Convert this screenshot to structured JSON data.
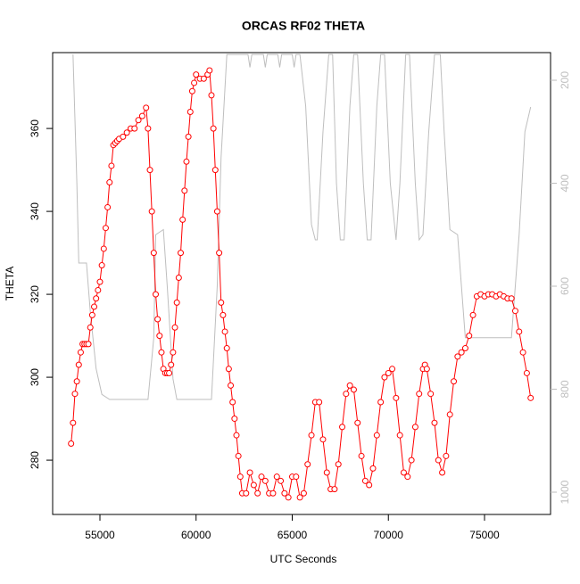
{
  "chart_data": {
    "type": "line",
    "title": "ORCAS RF02 THETA",
    "x_label": "UTC Seconds",
    "y_label": "THETA",
    "xlim": [
      52541,
      78434
    ],
    "ylim": [
      266.9,
      378.3
    ],
    "y2lim": [
      1043.3,
      146.3
    ],
    "xticks": [
      55000,
      60000,
      65000,
      70000,
      75000
    ],
    "yticks": [
      280,
      300,
      320,
      340,
      360
    ],
    "y2ticks": [
      200,
      400,
      600,
      800,
      1000
    ],
    "series": [
      {
        "color": "#ff0000",
        "marker": "circle",
        "x": [
          53500,
          53600,
          53700,
          53800,
          53900,
          54000,
          54100,
          54200,
          54300,
          54400,
          54500,
          54600,
          54700,
          54800,
          54900,
          55000,
          55100,
          55200,
          55300,
          55400,
          55500,
          55600,
          55700,
          55800,
          55900,
          56000,
          56200,
          56400,
          56600,
          56800,
          57000,
          57200,
          57400,
          57500,
          57600,
          57700,
          57800,
          57900,
          58000,
          58100,
          58200,
          58300,
          58400,
          58500,
          58600,
          58700,
          58800,
          58900,
          59000,
          59100,
          59200,
          59300,
          59400,
          59500,
          59600,
          59700,
          59800,
          59900,
          60000,
          60200,
          60400,
          60600,
          60700,
          60800,
          60900,
          61000,
          61100,
          61200,
          61300,
          61400,
          61500,
          61600,
          61700,
          61800,
          61900,
          62000,
          62100,
          62200,
          62300,
          62400,
          62600,
          62800,
          63000,
          63200,
          63400,
          63600,
          63800,
          64000,
          64200,
          64400,
          64600,
          64800,
          65000,
          65200,
          65400,
          65600,
          65800,
          66000,
          66200,
          66400,
          66600,
          66800,
          67000,
          67200,
          67400,
          67600,
          67800,
          68000,
          68200,
          68400,
          68600,
          68800,
          69000,
          69200,
          69400,
          69600,
          69800,
          70000,
          70200,
          70400,
          70600,
          70800,
          71000,
          71200,
          71400,
          71600,
          71800,
          71900,
          72000,
          72200,
          72400,
          72600,
          72800,
          73000,
          73200,
          73400,
          73600,
          73800,
          74000,
          74200,
          74400,
          74600,
          74800,
          75000,
          75200,
          75400,
          75600,
          75800,
          76000,
          76200,
          76400,
          76600,
          76800,
          77000,
          77200,
          77400
        ],
        "values": [
          284,
          289,
          296,
          299,
          303,
          306,
          308,
          308,
          308,
          308,
          312,
          315,
          317,
          319,
          321,
          323,
          327,
          331,
          336,
          341,
          347,
          351,
          356,
          356.5,
          357,
          357.5,
          358,
          359,
          360,
          360,
          362,
          363,
          365,
          360,
          350,
          340,
          330,
          320,
          314,
          310,
          306,
          302,
          301,
          301,
          301,
          303,
          306,
          312,
          318,
          324,
          330,
          338,
          345,
          352,
          358,
          364,
          369,
          371,
          373,
          372,
          372,
          373,
          374,
          368,
          360,
          350,
          340,
          330,
          318,
          315,
          311,
          307,
          302,
          298,
          294,
          290,
          286,
          281,
          276,
          272,
          272,
          277,
          274,
          272,
          276,
          275,
          272,
          272,
          276,
          275,
          272,
          271,
          276,
          276,
          271,
          272,
          279,
          286,
          294,
          294,
          285,
          277,
          273,
          273,
          279,
          288,
          296,
          298,
          297,
          289,
          281,
          275,
          274,
          278,
          286,
          294,
          300,
          301,
          302,
          295,
          286,
          277,
          276,
          280,
          288,
          296,
          302,
          303,
          302,
          296,
          289,
          280,
          277,
          281,
          291,
          299,
          305,
          306,
          307,
          310,
          315,
          319.5,
          320,
          319.5,
          320,
          320,
          319.5,
          320,
          319.5,
          319,
          319,
          316,
          311,
          306,
          301,
          295
        ]
      },
      {
        "color": "#bebebe",
        "axis": "y2",
        "x": [
          53600,
          53800,
          53900,
          54300,
          54500,
          54800,
          55100,
          55500,
          57500,
          57800,
          57900,
          58300,
          58500,
          58800,
          59000,
          60800,
          61100,
          61300,
          61600,
          62500,
          62700,
          62800,
          62900,
          63500,
          63600,
          63700,
          64250,
          64350,
          64450,
          65000,
          65100,
          65200,
          65400,
          65700,
          66000,
          66200,
          66300,
          66600,
          66900,
          67100,
          67300,
          67500,
          67700,
          68000,
          68200,
          68400,
          68700,
          68900,
          69100,
          69400,
          69600,
          69800,
          70100,
          70400,
          70600,
          70900,
          71100,
          71400,
          71600,
          71800,
          72100,
          72400,
          72700,
          72900,
          73200,
          73600,
          73800,
          74000,
          76400,
          76800,
          77100,
          77400
        ],
        "values": [
          150,
          400,
          555,
          555,
          650,
          760,
          810,
          820,
          820,
          700,
          500,
          490,
          600,
          780,
          820,
          820,
          600,
          350,
          150,
          150,
          150,
          175,
          150,
          150,
          175,
          150,
          150,
          175,
          150,
          150,
          175,
          150,
          150,
          250,
          480,
          510,
          510,
          300,
          150,
          150,
          400,
          510,
          510,
          250,
          150,
          150,
          400,
          510,
          510,
          250,
          150,
          150,
          400,
          510,
          400,
          150,
          150,
          400,
          510,
          500,
          300,
          150,
          150,
          300,
          490,
          500,
          600,
          700,
          700,
          500,
          300,
          252
        ]
      }
    ]
  }
}
